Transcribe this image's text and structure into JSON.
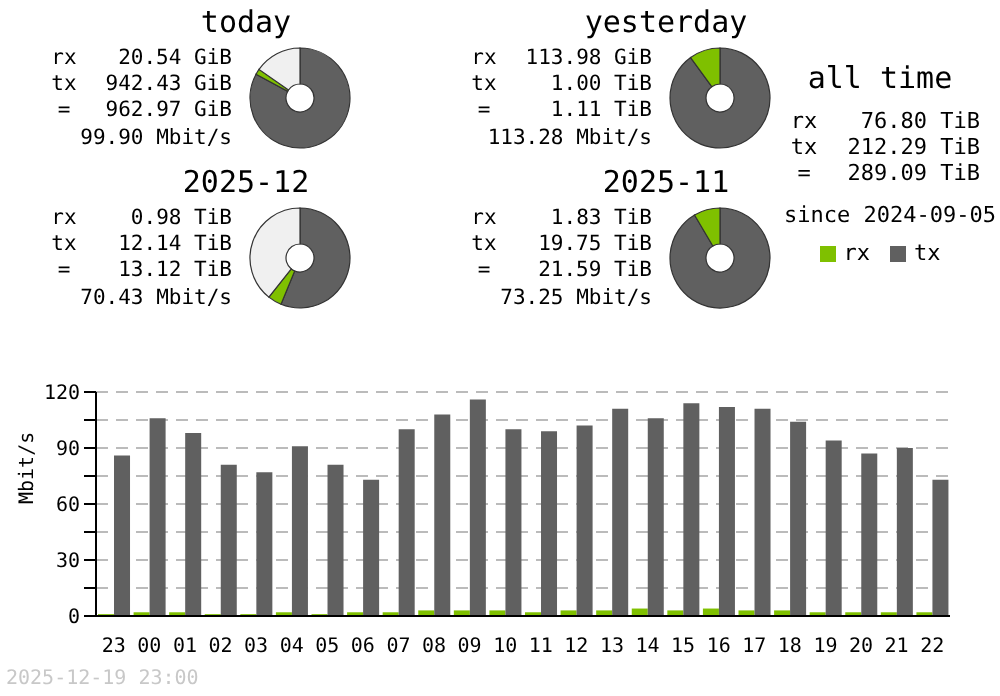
{
  "chart_data": [
    {
      "type": "donut",
      "title": "today",
      "categories": [
        null,
        null,
        null
      ],
      "values": [
        82.9,
        1.8,
        15.3
      ],
      "colors": [
        "#606060",
        "#7fc000",
        "#f0f0f0"
      ],
      "annotations": [
        "rx",
        "20.54 GiB",
        "tx",
        "942.43 GiB",
        "=",
        "962.97 GiB",
        "99.90 Mbit/s"
      ]
    },
    {
      "type": "donut",
      "title": "yesterday",
      "categories": [
        null,
        null,
        null
      ],
      "values": [
        90.0,
        10.0,
        0
      ],
      "colors": [
        "#606060",
        "#7fc000",
        "#f0f0f0"
      ],
      "annotations": [
        "rx",
        "113.98 GiB",
        "tx",
        "1.00 TiB",
        "=",
        "1.11 TiB",
        "113.28 Mbit/s"
      ]
    },
    {
      "type": "other",
      "title": "all time",
      "annotations": [
        "rx",
        "76.80 TiB",
        "tx",
        "212.29 TiB",
        "=",
        "289.09 TiB",
        "since 2024-09-05"
      ]
    },
    {
      "type": "donut",
      "title": "2025-12",
      "categories": [
        null,
        null,
        null
      ],
      "values": [
        56.2,
        4.5,
        39.3
      ],
      "colors": [
        "#606060",
        "#7fc000",
        "#f0f0f0"
      ],
      "annotations": [
        "rx",
        "0.98 TiB",
        "tx",
        "12.14 TiB",
        "=",
        "13.12 TiB",
        "70.43 Mbit/s"
      ]
    },
    {
      "type": "donut",
      "title": "2025-11",
      "categories": [
        null,
        null,
        null
      ],
      "values": [
        91.5,
        8.5,
        0
      ],
      "colors": [
        "#606060",
        "#7fc000",
        "#f0f0f0"
      ],
      "annotations": [
        "rx",
        "1.83 TiB",
        "tx",
        "19.75 TiB",
        "=",
        "21.59 TiB",
        "73.25 Mbit/s"
      ]
    },
    {
      "type": "bar",
      "ylabel": "Mbit/s",
      "categories": [
        "23",
        "00",
        "01",
        "02",
        "03",
        "04",
        "05",
        "06",
        "07",
        "08",
        "09",
        "10",
        "11",
        "12",
        "13",
        "14",
        "15",
        "16",
        "17",
        "18",
        "19",
        "20",
        "21",
        "22"
      ],
      "series": [
        {
          "name": "rx",
          "color": "#7fc000",
          "values": [
            1,
            2,
            2,
            1,
            1,
            2,
            1,
            2,
            2,
            3,
            3,
            3,
            2,
            3,
            3,
            4,
            3,
            4,
            3,
            3,
            2,
            2,
            2,
            2
          ]
        },
        {
          "name": "tx",
          "color": "#606060",
          "values": [
            86,
            106,
            98,
            81,
            77,
            91,
            81,
            73,
            100,
            108,
            116,
            100,
            99,
            102,
            111,
            106,
            114,
            112,
            111,
            104,
            94,
            87,
            90,
            73
          ]
        }
      ],
      "ylim": [
        0,
        120
      ],
      "yticks": [
        0,
        {
          "value": 15,
          "label": null
        },
        30,
        {
          "value": 45,
          "label": null
        },
        60,
        {
          "value": 75,
          "label": null
        },
        90,
        {
          "value": 105,
          "label": null
        },
        120
      ],
      "grid": "y",
      "legend": "top right",
      "annotations": [
        "2025-12-19 23:00"
      ]
    }
  ]
}
